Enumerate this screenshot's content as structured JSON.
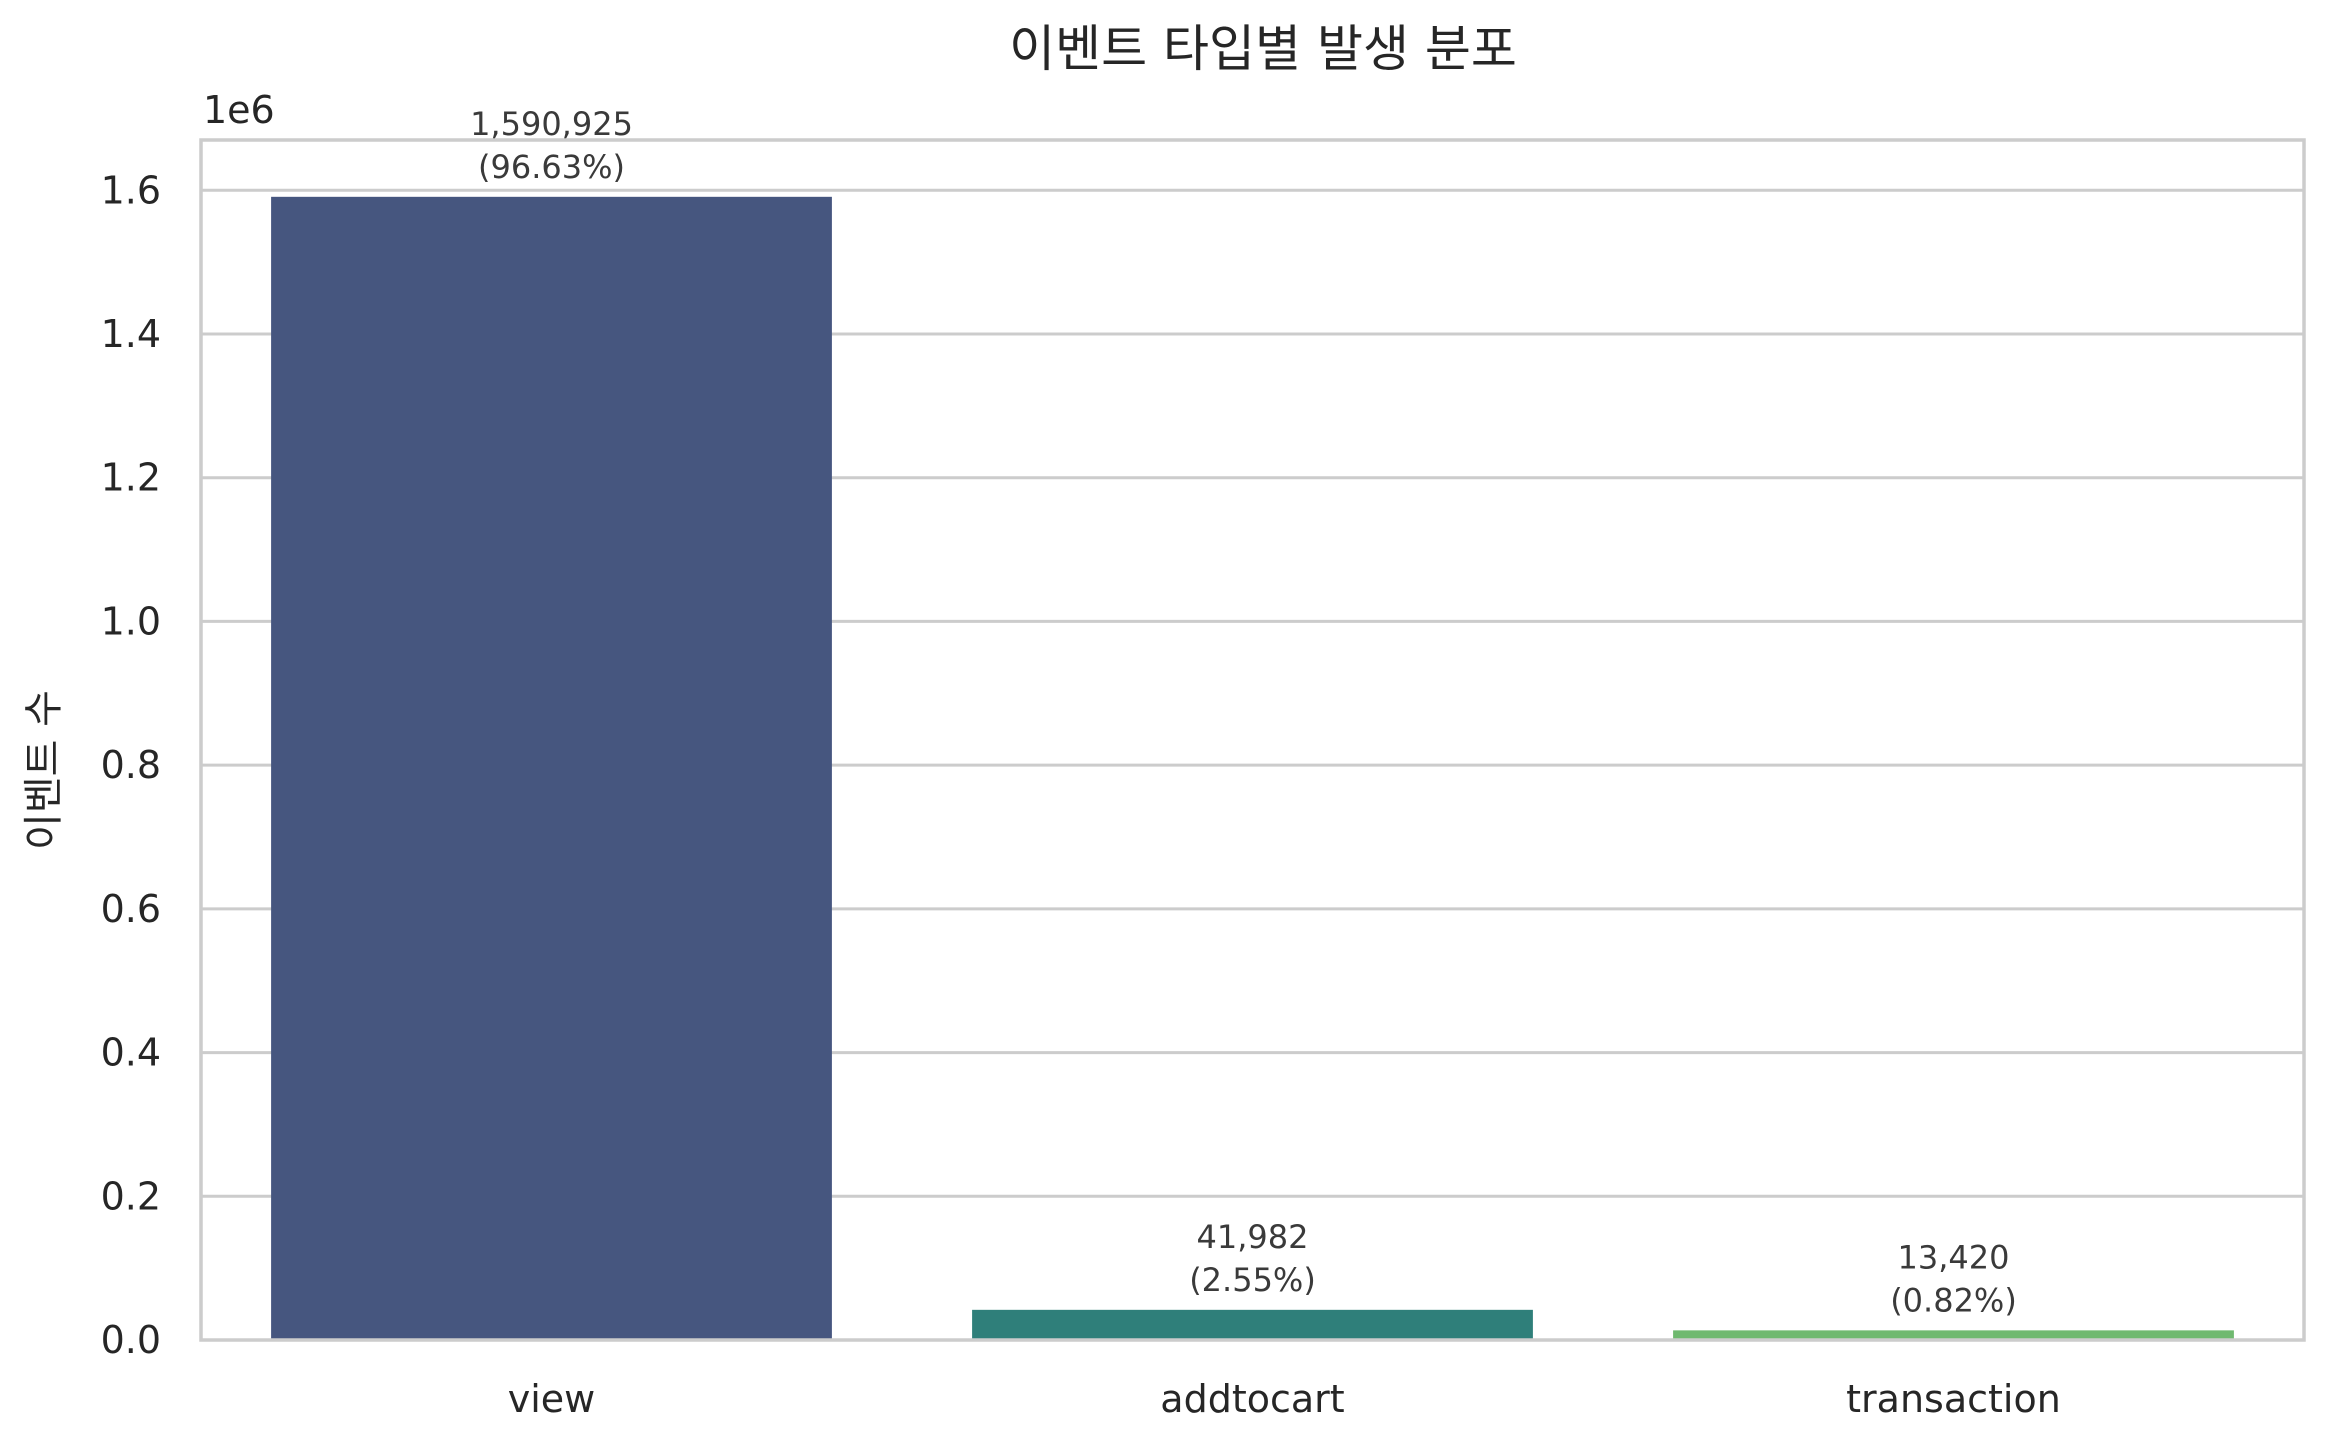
{
  "chart_data": {
    "type": "bar",
    "title": "이벤트 타입별 발생 분포",
    "xlabel": "",
    "ylabel": "이벤트 수",
    "offset_label": "1e6",
    "categories": [
      "view",
      "addtocart",
      "transaction"
    ],
    "values": [
      1590925,
      41982,
      13420
    ],
    "data_labels": [
      {
        "count": "1,590,925",
        "percent": "(96.63%)"
      },
      {
        "count": "41,982",
        "percent": "(2.55%)"
      },
      {
        "count": "13,420",
        "percent": "(0.82%)"
      }
    ],
    "colors": [
      "#46567f",
      "#2f7f7a",
      "#6fb96f"
    ],
    "ylim": [
      0,
      1670000
    ],
    "yticks": [
      0,
      200000,
      400000,
      600000,
      800000,
      1000000,
      1200000,
      1400000,
      1600000
    ],
    "ytick_labels": [
      "0.0",
      "0.2",
      "0.4",
      "0.6",
      "0.8",
      "1.0",
      "1.2",
      "1.4",
      "1.6"
    ],
    "grid": "horizontal",
    "legend": "none"
  }
}
